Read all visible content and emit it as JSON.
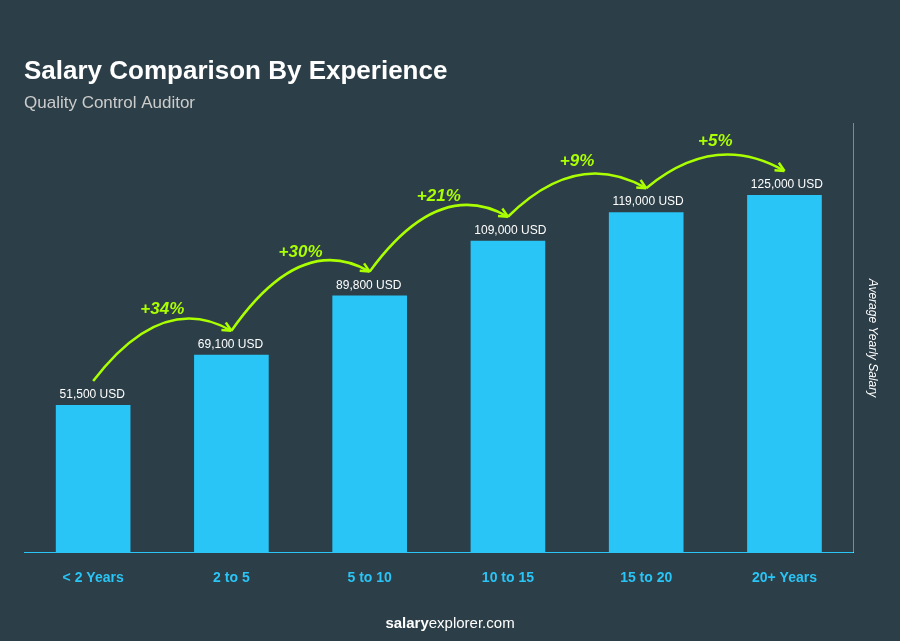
{
  "chart_data": {
    "type": "bar",
    "title": "Salary Comparison By Experience",
    "subtitle": "Quality Control Auditor",
    "ylabel": "Average Yearly Salary",
    "categories": [
      "< 2 Years",
      "2 to 5",
      "5 to 10",
      "10 to 15",
      "15 to 20",
      "20+ Years"
    ],
    "values": [
      51500,
      69100,
      89800,
      109000,
      119000,
      125000
    ],
    "value_labels": [
      "51,500 USD",
      "69,100 USD",
      "89,800 USD",
      "109,000 USD",
      "119,000 USD",
      "125,000 USD"
    ],
    "data_labels": true,
    "color": "#29c5f6",
    "ylim": [
      0,
      150000
    ],
    "grid": false,
    "tick_labels": "x",
    "annotations": [
      {
        "text": "+34%",
        "from": "< 2 Years",
        "to": "2 to 5",
        "color": "#aaff00"
      },
      {
        "text": "+30%",
        "from": "2 to 5",
        "to": "5 to 10",
        "color": "#aaff00"
      },
      {
        "text": "+21%",
        "from": "5 to 10",
        "to": "10 to 15",
        "color": "#aaff00"
      },
      {
        "text": "+9%",
        "from": "10 to 15",
        "to": "15 to 20",
        "color": "#aaff00"
      },
      {
        "text": "+5%",
        "from": "15 to 20",
        "to": "20+ Years",
        "color": "#aaff00"
      }
    ],
    "footer": [
      "salary",
      "explorer.com"
    ]
  }
}
